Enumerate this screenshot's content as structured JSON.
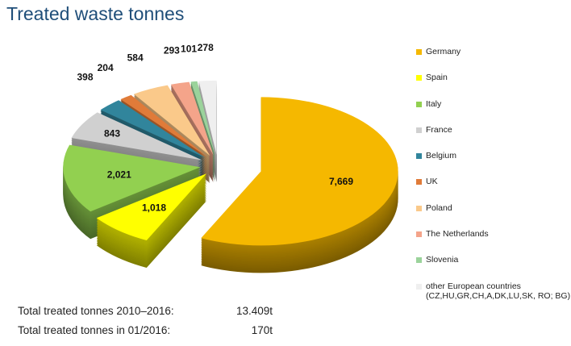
{
  "title": "Treated waste tonnes",
  "chart_data": {
    "type": "pie",
    "style": "3d-exploded",
    "title": "Treated waste tonnes",
    "legend_position": "right",
    "slices": [
      {
        "label": "Germany",
        "value": 7669,
        "display": "7,669",
        "color": "#f5b800"
      },
      {
        "label": "Spain",
        "value": 1018,
        "display": "1,018",
        "color": "#ffff00"
      },
      {
        "label": "Italy",
        "value": 2021,
        "display": "2,021",
        "color": "#92d050"
      },
      {
        "label": "France",
        "value": 843,
        "display": "843",
        "color": "#d0d0d0"
      },
      {
        "label": "Belgium",
        "value": 398,
        "display": "398",
        "color": "#31859c"
      },
      {
        "label": "UK",
        "value": 204,
        "display": "204",
        "color": "#e07b39"
      },
      {
        "label": "Poland",
        "value": 584,
        "display": "584",
        "color": "#fac98a"
      },
      {
        "label": "The Netherlands",
        "value": 293,
        "display": "293",
        "color": "#f4a48a"
      },
      {
        "label": "Slovenia",
        "value": 101,
        "display": "101",
        "color": "#9bd39b"
      },
      {
        "label": "other European countries (CZ,HU,GR,CH,A,DK,LU,SK, RO; BG)",
        "value": 278,
        "display": "278",
        "color": "#efefef"
      }
    ]
  },
  "totals": [
    {
      "label": "Total treated tonnes 2010–2016:",
      "value": "13.409t"
    },
    {
      "label": "Total treated tonnes  in 01/2016:",
      "value": "170t"
    }
  ]
}
